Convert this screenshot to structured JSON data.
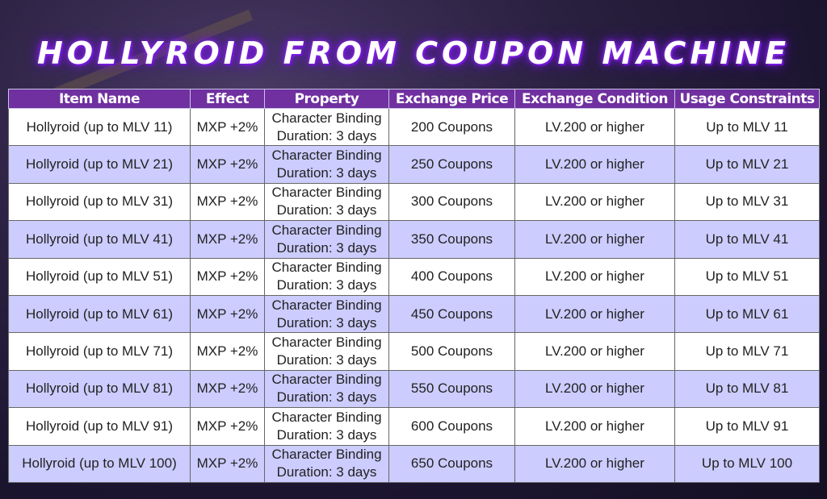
{
  "title": "HOLLYROID FROM COUPON MACHINE",
  "colors": {
    "header_bg": "#7030a0",
    "row_alt": "#ccccff",
    "title_glow": "#7a1fe0"
  },
  "table": {
    "headers": [
      "Item Name",
      "Effect",
      "Property",
      "Exchange Price",
      "Exchange Condition",
      "Usage Constraints"
    ],
    "rows": [
      [
        "Hollyroid (up to MLV 11)",
        "MXP +2%",
        "Character Binding",
        "Duration: 3 days",
        "200 Coupons",
        "LV.200 or higher",
        "Up to MLV 11"
      ],
      [
        "Hollyroid (up to MLV 21)",
        "MXP +2%",
        "Character Binding",
        "Duration: 3 days",
        "250 Coupons",
        "LV.200 or higher",
        "Up to MLV 21"
      ],
      [
        "Hollyroid (up to MLV 31)",
        "MXP +2%",
        "Character Binding",
        "Duration: 3 days",
        "300 Coupons",
        "LV.200 or higher",
        "Up to MLV 31"
      ],
      [
        "Hollyroid (up to MLV 41)",
        "MXP +2%",
        "Character Binding",
        "Duration: 3 days",
        "350 Coupons",
        "LV.200 or higher",
        "Up to MLV 41"
      ],
      [
        "Hollyroid (up to MLV 51)",
        "MXP +2%",
        "Character Binding",
        "Duration: 3 days",
        "400 Coupons",
        "LV.200 or higher",
        "Up to MLV 51"
      ],
      [
        "Hollyroid (up to MLV 61)",
        "MXP +2%",
        "Character Binding",
        "Duration: 3 days",
        "450 Coupons",
        "LV.200 or higher",
        "Up to MLV 61"
      ],
      [
        "Hollyroid (up to MLV 71)",
        "MXP +2%",
        "Character Binding",
        "Duration: 3 days",
        "500 Coupons",
        "LV.200 or higher",
        "Up to MLV 71"
      ],
      [
        "Hollyroid (up to MLV 81)",
        "MXP +2%",
        "Character Binding",
        "Duration: 3 days",
        "550 Coupons",
        "LV.200 or higher",
        "Up to MLV 81"
      ],
      [
        "Hollyroid (up to MLV 91)",
        "MXP +2%",
        "Character Binding",
        "Duration: 3 days",
        "600 Coupons",
        "LV.200 or higher",
        "Up to MLV 91"
      ],
      [
        "Hollyroid (up to MLV 100)",
        "MXP +2%",
        "Character Binding",
        "Duration: 3 days",
        "650 Coupons",
        "LV.200 or higher",
        "Up to MLV 100"
      ]
    ]
  }
}
